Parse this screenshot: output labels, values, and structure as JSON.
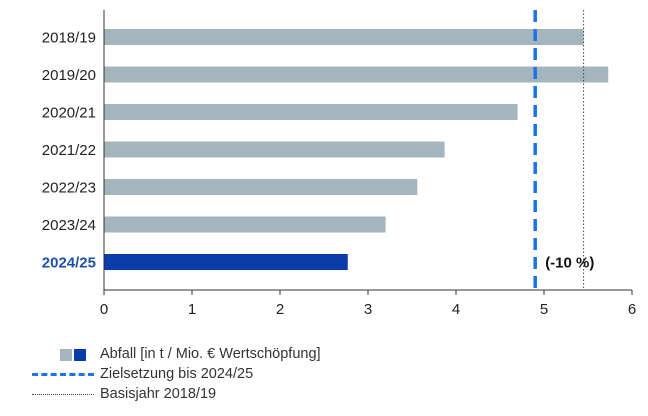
{
  "chart_data": {
    "type": "bar",
    "orientation": "horizontal",
    "categories": [
      "2018/19",
      "2019/20",
      "2020/21",
      "2021/22",
      "2022/23",
      "2023/24",
      "2024/25"
    ],
    "values": [
      5.45,
      5.73,
      4.7,
      3.87,
      3.56,
      3.2,
      2.77
    ],
    "highlight_index": 6,
    "xlim": [
      0,
      6
    ],
    "xticks": [
      "0",
      "1",
      "2",
      "3",
      "4",
      "5",
      "6"
    ],
    "target_value": 4.9,
    "baseline_value": 5.45,
    "annotation": "(-10 %)",
    "grid": false,
    "colors": {
      "bar": "#a5b5bd",
      "highlight": "#0a3caa",
      "target": "#1a73e8",
      "baseline": "#444444"
    }
  },
  "legend": {
    "bars_label": "Abfall [in t / Mio. € Wertschöpfung]",
    "target_label": "Zielsetzung bis 2024/25",
    "baseline_label": "Basisjahr 2018/19"
  }
}
